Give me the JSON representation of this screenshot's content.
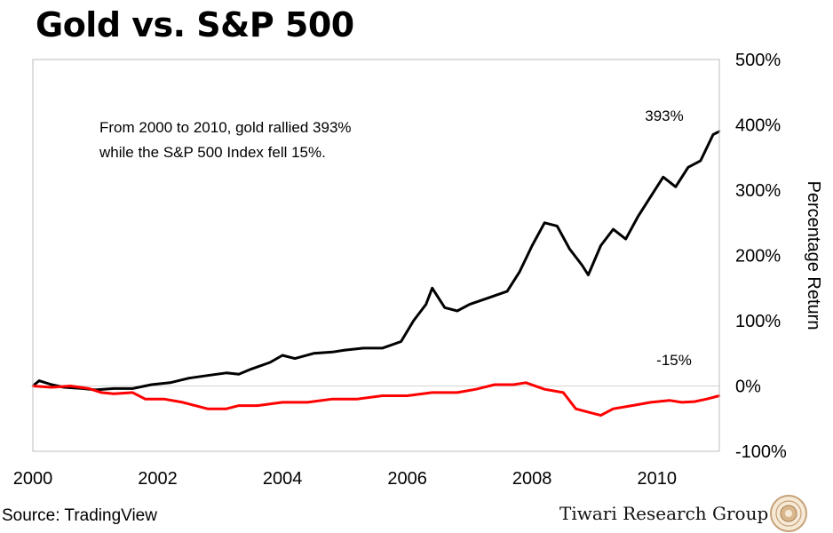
{
  "title": "Gold vs. S&P 500",
  "source": "Source: TradingView",
  "brand": "Tiwari Research Group",
  "chart_data": {
    "type": "line",
    "title": "Gold vs. S&P 500",
    "xlabel": "",
    "ylabel": "Percentage Return",
    "xlim": [
      2000,
      2011
    ],
    "ylim": [
      -100,
      500
    ],
    "x_ticks": [
      2000,
      2002,
      2004,
      2006,
      2008,
      2010
    ],
    "x_tick_labels": [
      "2000",
      "2002",
      "2004",
      "2006",
      "2008",
      "2010"
    ],
    "y_ticks": [
      -100,
      0,
      100,
      200,
      300,
      400,
      500
    ],
    "y_tick_labels": [
      "-100%",
      "0%",
      "100%",
      "200%",
      "300%",
      "400%",
      "500%"
    ],
    "annotation_lines": [
      "From 2000 to 2010, gold rallied 393%",
      "while the S&P 500 Index fell 15%."
    ],
    "series": [
      {
        "name": "Gold",
        "color": "#000000",
        "end_label": "393%",
        "x": [
          2000,
          2000.1,
          2000.3,
          2000.5,
          2000.8,
          2001.0,
          2001.3,
          2001.6,
          2001.9,
          2002.2,
          2002.5,
          2002.8,
          2003.1,
          2003.3,
          2003.5,
          2003.8,
          2004.0,
          2004.2,
          2004.5,
          2004.8,
          2005.0,
          2005.3,
          2005.6,
          2005.9,
          2006.1,
          2006.3,
          2006.4,
          2006.6,
          2006.8,
          2007.0,
          2007.3,
          2007.6,
          2007.8,
          2008.0,
          2008.2,
          2008.4,
          2008.6,
          2008.8,
          2008.9,
          2009.1,
          2009.3,
          2009.5,
          2009.7,
          2009.9,
          2010.1,
          2010.3,
          2010.5,
          2010.7,
          2010.9,
          2011.0
        ],
        "y": [
          0,
          8,
          2,
          -2,
          -4,
          -6,
          -4,
          -4,
          2,
          5,
          12,
          16,
          20,
          18,
          26,
          36,
          47,
          42,
          50,
          52,
          55,
          58,
          58,
          68,
          100,
          125,
          150,
          120,
          115,
          125,
          135,
          145,
          175,
          215,
          250,
          245,
          210,
          185,
          170,
          215,
          240,
          225,
          260,
          290,
          320,
          305,
          335,
          345,
          385,
          390
        ]
      },
      {
        "name": "S&P 500",
        "color": "#ff0000",
        "end_label": "-15%",
        "x": [
          2000,
          2000.3,
          2000.6,
          2000.9,
          2001.1,
          2001.3,
          2001.6,
          2001.8,
          2002.1,
          2002.4,
          2002.6,
          2002.8,
          2003.1,
          2003.3,
          2003.6,
          2004.0,
          2004.4,
          2004.8,
          2005.2,
          2005.6,
          2006.0,
          2006.4,
          2006.8,
          2007.1,
          2007.4,
          2007.7,
          2007.9,
          2008.2,
          2008.5,
          2008.7,
          2008.9,
          2009.1,
          2009.3,
          2009.6,
          2009.9,
          2010.2,
          2010.4,
          2010.6,
          2010.8,
          2011.0
        ],
        "y": [
          0,
          -2,
          0,
          -4,
          -10,
          -12,
          -10,
          -20,
          -20,
          -25,
          -30,
          -35,
          -35,
          -30,
          -30,
          -25,
          -25,
          -20,
          -20,
          -15,
          -15,
          -10,
          -10,
          -5,
          2,
          2,
          5,
          -5,
          -10,
          -35,
          -40,
          -45,
          -35,
          -30,
          -25,
          -22,
          -25,
          -24,
          -20,
          -15
        ]
      }
    ]
  }
}
